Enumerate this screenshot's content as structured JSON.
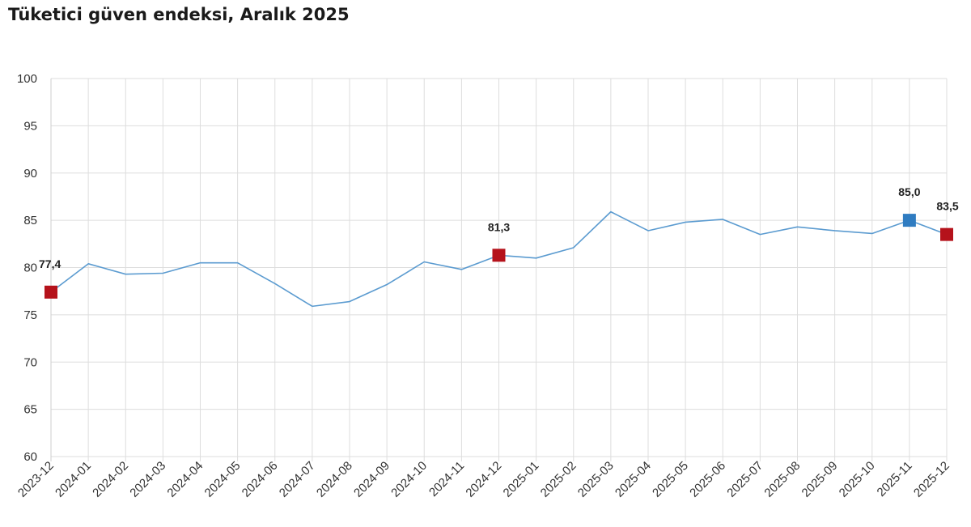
{
  "title": "Tüketici güven endeksi, Aralık 2025",
  "colors": {
    "line": "#5b9bd0",
    "highlight_red": "#b5121b",
    "highlight_blue": "#2f7cc1",
    "grid": "#dddddd"
  },
  "chart_data": {
    "type": "line",
    "title": "Tüketici güven endeksi, Aralık 2025",
    "xlabel": "",
    "ylabel": "",
    "ylim": [
      60,
      100
    ],
    "yticks": [
      "60",
      "65",
      "70",
      "75",
      "80",
      "85",
      "90",
      "95",
      "100"
    ],
    "grid": true,
    "categories": [
      "2023-12",
      "2024-01",
      "2024-02",
      "2024-03",
      "2024-04",
      "2024-05",
      "2024-06",
      "2024-07",
      "2024-08",
      "2024-09",
      "2024-10",
      "2024-11",
      "2024-12",
      "2025-01",
      "2025-02",
      "2025-03",
      "2025-04",
      "2025-05",
      "2025-06",
      "2025-07",
      "2025-08",
      "2025-09",
      "2025-10",
      "2025-11",
      "2025-12"
    ],
    "series": [
      {
        "values": [
          77.4,
          80.4,
          79.3,
          79.4,
          80.5,
          80.5,
          78.3,
          75.9,
          76.4,
          78.2,
          80.6,
          79.8,
          81.3,
          81.0,
          82.1,
          85.9,
          83.9,
          84.8,
          85.1,
          83.5,
          84.3,
          83.9,
          83.6,
          85.0,
          83.5
        ]
      }
    ],
    "highlights": [
      {
        "category": "2023-12",
        "label": "77,4",
        "color": "red"
      },
      {
        "category": "2024-12",
        "label": "81,3",
        "color": "red"
      },
      {
        "category": "2025-11",
        "label": "85,0",
        "color": "blue"
      },
      {
        "category": "2025-12",
        "label": "83,5",
        "color": "red"
      }
    ]
  }
}
